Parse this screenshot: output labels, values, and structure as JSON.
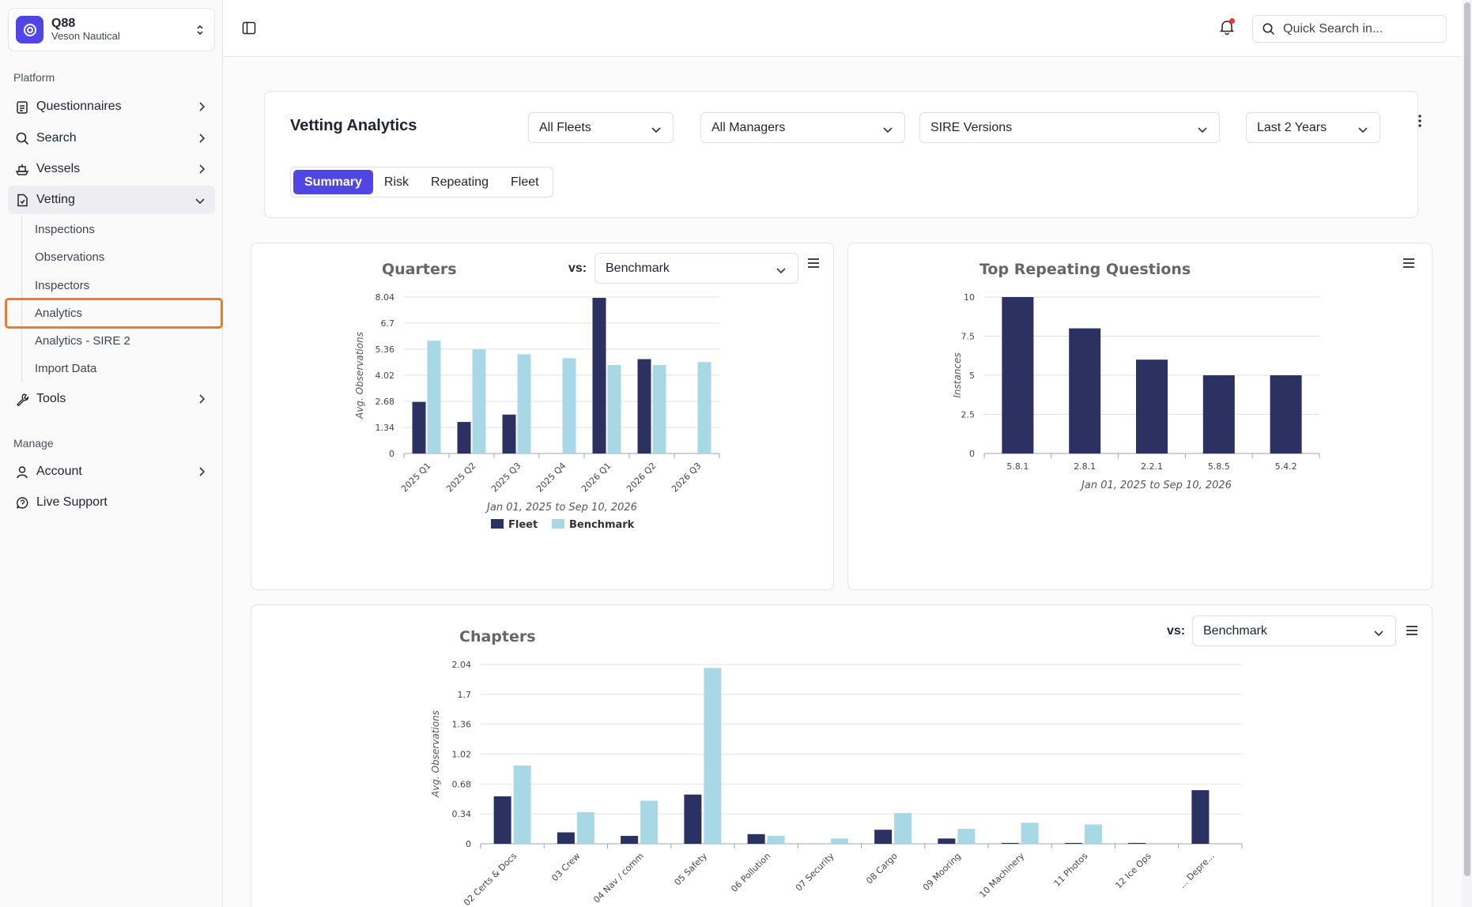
{
  "org": {
    "name": "Q88",
    "subtitle": "Veson Nautical"
  },
  "sidebar": {
    "platform_label": "Platform",
    "manage_label": "Manage",
    "items": [
      {
        "label": "Questionnaires",
        "icon": "clipboard-icon"
      },
      {
        "label": "Search",
        "icon": "search-icon"
      },
      {
        "label": "Vessels",
        "icon": "ship-icon"
      },
      {
        "label": "Vetting",
        "icon": "file-check-icon"
      },
      {
        "label": "Tools",
        "icon": "wrench-icon"
      }
    ],
    "vetting_sub": [
      "Inspections",
      "Observations",
      "Inspectors",
      "Analytics",
      "Analytics - SIRE 2",
      "Import Data"
    ],
    "manage_items": [
      {
        "label": "Account",
        "icon": "user-icon"
      },
      {
        "label": "Live Support",
        "icon": "chat-icon"
      }
    ]
  },
  "topbar": {
    "search_placeholder": "Quick Search in..."
  },
  "header": {
    "title": "Vetting Analytics",
    "filters": {
      "fleets": "All Fleets",
      "managers": "All Managers",
      "sire": "SIRE Versions",
      "period": "Last 2 Years"
    },
    "tabs": [
      "Summary",
      "Risk",
      "Repeating",
      "Fleet"
    ],
    "active_tab": "Summary"
  },
  "colors": {
    "fleet": "#2b3160",
    "benchmark": "#a8d8e6",
    "accent": "#4f46e5",
    "highlight": "#f07a2a"
  },
  "chart_data": [
    {
      "type": "bar",
      "title": "Quarters",
      "vs_label": "vs:",
      "vs_value": "Benchmark",
      "xlabel": "Jan 01, 2025 to Sep 10, 2026",
      "ylabel": "Avg. Observations",
      "yticks": [
        "0",
        "1.34",
        "2.68",
        "4.02",
        "5.36",
        "6.7",
        "8.04"
      ],
      "ylim": [
        0,
        8.04
      ],
      "categories": [
        "2025 Q1",
        "2025 Q2",
        "2025 Q3",
        "2025 Q4",
        "2026 Q1",
        "2026 Q2",
        "2026 Q3"
      ],
      "series": [
        {
          "name": "Fleet",
          "values": [
            2.65,
            1.62,
            2.0,
            0,
            8.0,
            4.85,
            0
          ]
        },
        {
          "name": "Benchmark",
          "values": [
            5.8,
            5.36,
            5.1,
            4.9,
            4.55,
            4.55,
            4.7
          ]
        }
      ],
      "legend": "bottom"
    },
    {
      "type": "bar",
      "title": "Top Repeating Questions",
      "xlabel": "Jan 01, 2025 to Sep 10, 2026",
      "ylabel": "Instances",
      "yticks": [
        "0",
        "2.5",
        "5",
        "7.5",
        "10"
      ],
      "ylim": [
        0,
        10
      ],
      "categories": [
        "5.8.1",
        "2.8.1",
        "2.2.1",
        "5.8.5",
        "5.4.2"
      ],
      "values": [
        10,
        8,
        6,
        5,
        5
      ]
    },
    {
      "type": "bar",
      "title": "Chapters",
      "vs_label": "vs:",
      "vs_value": "Benchmark",
      "ylabel": "Avg. Observations",
      "yticks": [
        "0",
        "0.34",
        "0.68",
        "1.02",
        "1.36",
        "1.7",
        "2.04"
      ],
      "ylim": [
        0,
        2.04
      ],
      "categories": [
        "02 Certs & Docs",
        "03 Crew",
        "04 Nav / comm",
        "05 Safety",
        "06 Pollution",
        "07 Security",
        "08 Cargo",
        "09 Mooring",
        "10 Machinery",
        "11 Photos",
        "12 Ice Ops",
        "... Depre..."
      ],
      "series": [
        {
          "name": "Fleet",
          "values": [
            0.54,
            0.13,
            0.09,
            0.56,
            0.11,
            0,
            0.16,
            0.06,
            0.01,
            0.01,
            0.01,
            0.61
          ]
        },
        {
          "name": "Benchmark",
          "values": [
            0.89,
            0.36,
            0.49,
            2.0,
            0.09,
            0.06,
            0.35,
            0.17,
            0.24,
            0.22,
            0,
            0
          ]
        }
      ]
    }
  ]
}
